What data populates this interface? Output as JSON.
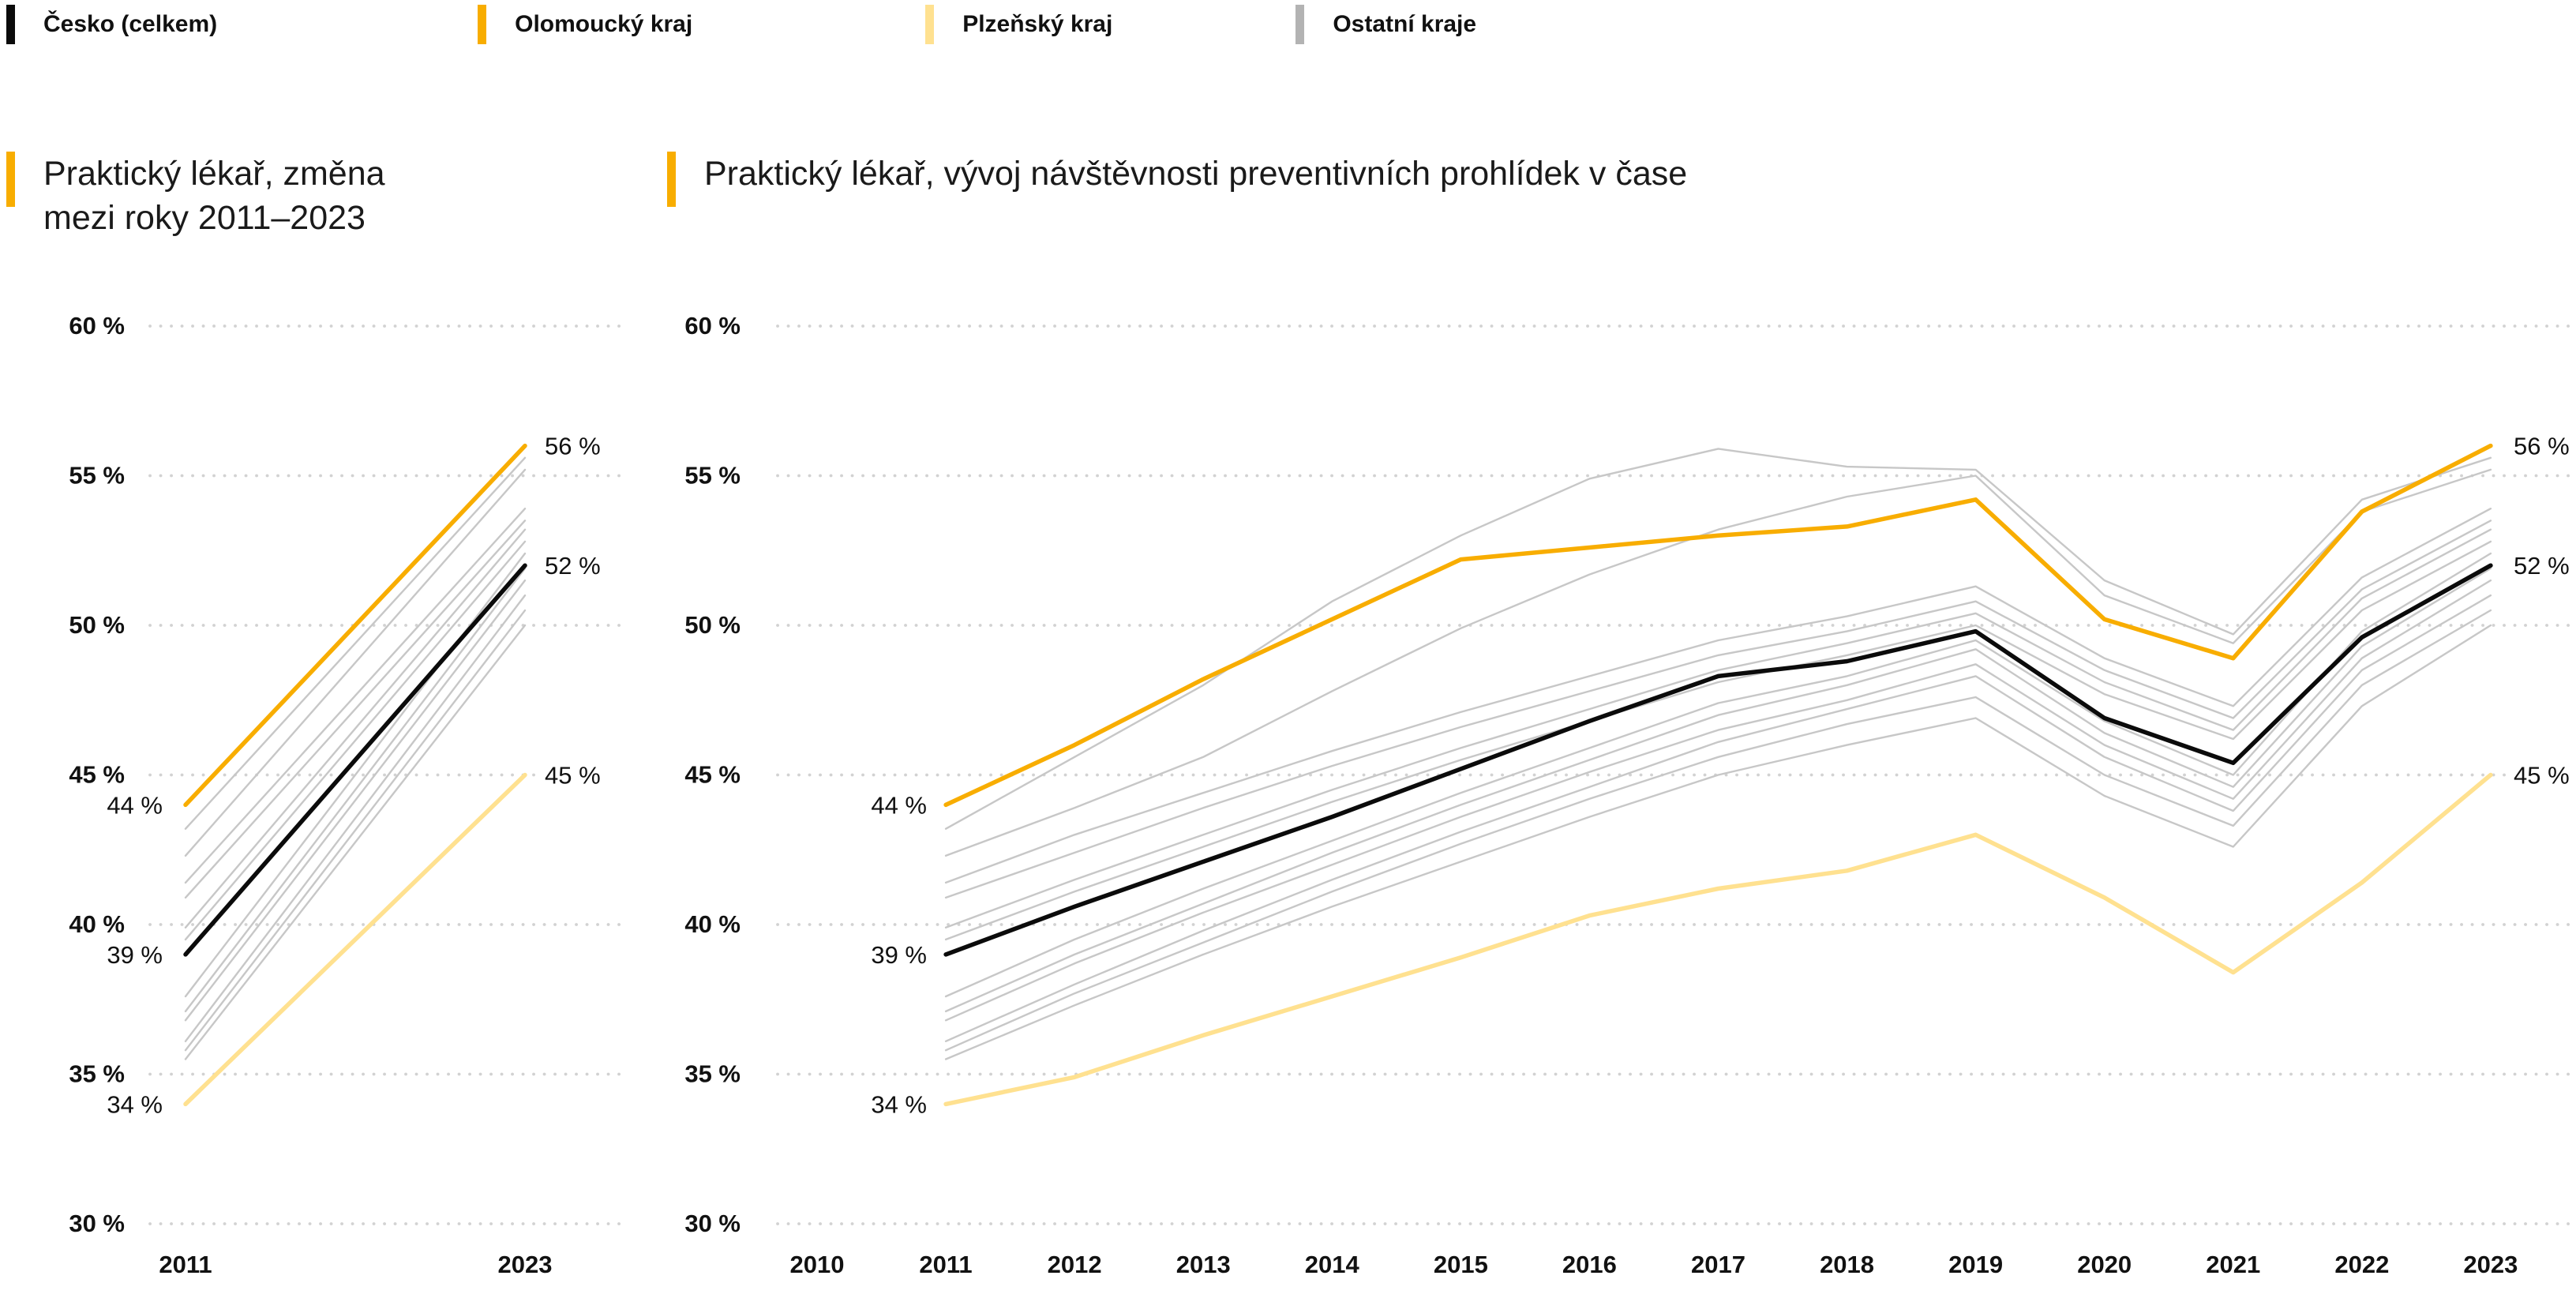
{
  "colors": {
    "black": "#0b0b0b",
    "orange": "#F8AD00",
    "yellow": "#FFE190",
    "gray_line": "#c7c7c7",
    "gray_swatch": "#b3b3b3",
    "grid_dot": "#d2d2d2",
    "text": "#111111"
  },
  "legend": {
    "items": [
      {
        "label": "Česko (celkem)",
        "color": "black"
      },
      {
        "label": "Olomoucký kraj",
        "color": "orange"
      },
      {
        "label": "Plzeňský kraj",
        "color": "yellow"
      },
      {
        "label": "Ostatní kraje",
        "color": "gray_swatch"
      }
    ]
  },
  "charts": {
    "left": {
      "title_line1": "Praktický lékař, změna",
      "title_line2": "mezi roky 2011–2023"
    },
    "right": {
      "title": "Praktický lékař, vývoj návštěvnosti preventivních prohlídek v čase"
    }
  },
  "axis": {
    "y_ticks": [
      {
        "label": "60 %",
        "value": 60
      },
      {
        "label": "55 %",
        "value": 55
      },
      {
        "label": "50 %",
        "value": 50
      },
      {
        "label": "45 %",
        "value": 45
      },
      {
        "label": "40 %",
        "value": 40
      },
      {
        "label": "35 %",
        "value": 35
      },
      {
        "label": "30 %",
        "value": 30
      }
    ]
  },
  "chart_data": [
    {
      "type": "line",
      "subtype": "slope",
      "title": "Praktický lékař, změna mezi roky 2011–2023",
      "x": [
        2011,
        2023
      ],
      "x_tick_labels": [
        "2011",
        "2023"
      ],
      "ylim": [
        30,
        60
      ],
      "grid": "dotted-horizontal",
      "series": [
        {
          "name": "Olomoucký kraj",
          "color": "orange",
          "main": true,
          "values": [
            44,
            56
          ]
        },
        {
          "name": "Česko (celkem)",
          "color": "black",
          "main": true,
          "values": [
            39,
            52
          ]
        },
        {
          "name": "Plzeňský kraj",
          "color": "yellow",
          "main": true,
          "values": [
            34,
            45
          ]
        },
        {
          "name": "Ostatní kraje 1",
          "color": "gray_line",
          "main": false,
          "values": [
            43.2,
            55.6
          ]
        },
        {
          "name": "Ostatní kraje 2",
          "color": "gray_line",
          "main": false,
          "values": [
            42.3,
            55.2
          ]
        },
        {
          "name": "Ostatní kraje 3",
          "color": "gray_line",
          "main": false,
          "values": [
            41.4,
            53.9
          ]
        },
        {
          "name": "Ostatní kraje 4",
          "color": "gray_line",
          "main": false,
          "values": [
            40.9,
            53.5
          ]
        },
        {
          "name": "Ostatní kraje 5",
          "color": "gray_line",
          "main": false,
          "values": [
            39.9,
            53.2
          ]
        },
        {
          "name": "Ostatní kraje 6",
          "color": "gray_line",
          "main": false,
          "values": [
            39.5,
            52.8
          ]
        },
        {
          "name": "Ostatní kraje 7",
          "color": "gray_line",
          "main": false,
          "values": [
            37.6,
            52.4
          ]
        },
        {
          "name": "Ostatní kraje 8",
          "color": "gray_line",
          "main": false,
          "values": [
            37.1,
            51.9
          ]
        },
        {
          "name": "Ostatní kraje 9",
          "color": "gray_line",
          "main": false,
          "values": [
            36.8,
            51.5
          ]
        },
        {
          "name": "Ostatní kraje 10",
          "color": "gray_line",
          "main": false,
          "values": [
            36.1,
            51.0
          ]
        },
        {
          "name": "Ostatní kraje 11",
          "color": "gray_line",
          "main": false,
          "values": [
            35.8,
            50.5
          ]
        },
        {
          "name": "Ostatní kraje 12",
          "color": "gray_line",
          "main": false,
          "values": [
            35.5,
            50.0
          ]
        }
      ],
      "value_labels": {
        "start": [
          {
            "text": "44 %",
            "value": 44
          },
          {
            "text": "39 %",
            "value": 39
          },
          {
            "text": "34 %",
            "value": 34
          }
        ],
        "end": [
          {
            "text": "56 %",
            "value": 56
          },
          {
            "text": "52 %",
            "value": 52
          },
          {
            "text": "45 %",
            "value": 45
          }
        ]
      }
    },
    {
      "type": "line",
      "title": "Praktický lékař, vývoj návštěvnosti preventivních prohlídek v čase",
      "x": [
        2011,
        2012,
        2013,
        2014,
        2015,
        2016,
        2017,
        2018,
        2019,
        2020,
        2021,
        2022,
        2023
      ],
      "x_tick_labels": [
        "2010",
        "2011",
        "2012",
        "2013",
        "2014",
        "2015",
        "2016",
        "2017",
        "2018",
        "2019",
        "2020",
        "2021",
        "2022",
        "2023"
      ],
      "x_axis_range": [
        2010,
        2023
      ],
      "ylim": [
        30,
        60
      ],
      "grid": "dotted-horizontal",
      "series": [
        {
          "name": "Olomoucký kraj",
          "color": "orange",
          "main": true,
          "values": [
            44,
            46,
            48.2,
            50.2,
            52.2,
            52.6,
            53,
            53.3,
            54.2,
            50.2,
            48.9,
            53.8,
            56
          ]
        },
        {
          "name": "Česko (celkem)",
          "color": "black",
          "main": true,
          "values": [
            39,
            40.6,
            42.1,
            43.6,
            45.2,
            46.8,
            48.3,
            48.8,
            49.8,
            46.9,
            45.4,
            49.6,
            52
          ]
        },
        {
          "name": "Plzeňský kraj",
          "color": "yellow",
          "main": true,
          "values": [
            34,
            34.9,
            36.3,
            37.6,
            38.9,
            40.3,
            41.2,
            41.8,
            43,
            40.9,
            38.4,
            41.4,
            45
          ]
        },
        {
          "name": "Ostatní kraje 1",
          "color": "gray_line",
          "main": false,
          "values": [
            43.2,
            45.6,
            48,
            50.8,
            53,
            54.9,
            55.9,
            55.3,
            55.2,
            51.5,
            49.7,
            54.2,
            55.6
          ]
        },
        {
          "name": "Ostatní kraje 2",
          "color": "gray_line",
          "main": false,
          "values": [
            42.3,
            43.9,
            45.6,
            47.8,
            49.9,
            51.7,
            53.2,
            54.3,
            55,
            51,
            49.4,
            53.8,
            55.2
          ]
        },
        {
          "name": "Ostatní kraje 3",
          "color": "gray_line",
          "main": false,
          "values": [
            41.4,
            43,
            44.4,
            45.8,
            47.1,
            48.3,
            49.5,
            50.3,
            51.3,
            48.9,
            47.3,
            51.6,
            53.9
          ]
        },
        {
          "name": "Ostatní kraje 4",
          "color": "gray_line",
          "main": false,
          "values": [
            40.9,
            42.4,
            43.9,
            45.3,
            46.6,
            47.8,
            49,
            49.8,
            50.8,
            48.5,
            46.9,
            51.2,
            53.5
          ]
        },
        {
          "name": "Ostatní kraje 5",
          "color": "gray_line",
          "main": false,
          "values": [
            39.9,
            41.5,
            43,
            44.5,
            45.9,
            47.2,
            48.5,
            49.4,
            50.4,
            48.1,
            46.5,
            50.9,
            53.2
          ]
        },
        {
          "name": "Ostatní kraje 6",
          "color": "gray_line",
          "main": false,
          "values": [
            39.5,
            41.1,
            42.6,
            44.1,
            45.5,
            46.8,
            48.1,
            49,
            50,
            47.7,
            46.2,
            50.5,
            52.8
          ]
        },
        {
          "name": "Ostatní kraje 7",
          "color": "gray_line",
          "main": false,
          "values": [
            37.6,
            39.5,
            41.2,
            42.8,
            44.4,
            45.9,
            47.4,
            48.3,
            49.5,
            46.8,
            45,
            49.8,
            52.4
          ]
        },
        {
          "name": "Ostatní kraje 8",
          "color": "gray_line",
          "main": false,
          "values": [
            37.1,
            39,
            40.7,
            42.4,
            44,
            45.5,
            47,
            48,
            49.2,
            46.4,
            44.6,
            49.3,
            51.9
          ]
        },
        {
          "name": "Ostatní kraje 9",
          "color": "gray_line",
          "main": false,
          "values": [
            36.8,
            38.7,
            40.4,
            42,
            43.6,
            45.1,
            46.5,
            47.5,
            48.7,
            46,
            44.2,
            48.9,
            51.5
          ]
        },
        {
          "name": "Ostatní kraje 10",
          "color": "gray_line",
          "main": false,
          "values": [
            36.1,
            38,
            39.8,
            41.5,
            43.1,
            44.6,
            46.1,
            47.2,
            48.3,
            45.6,
            43.8,
            48.5,
            51
          ]
        },
        {
          "name": "Ostatní kraje 11",
          "color": "gray_line",
          "main": false,
          "values": [
            35.8,
            37.7,
            39.4,
            41.1,
            42.7,
            44.2,
            45.6,
            46.7,
            47.6,
            45,
            43.3,
            48,
            50.5
          ]
        },
        {
          "name": "Ostatní kraje 12",
          "color": "gray_line",
          "main": false,
          "values": [
            35.5,
            37.3,
            39,
            40.6,
            42.1,
            43.6,
            45,
            46,
            46.9,
            44.3,
            42.6,
            47.3,
            50
          ]
        }
      ],
      "value_labels": {
        "start": [
          {
            "text": "44 %",
            "value": 44
          },
          {
            "text": "39 %",
            "value": 39
          },
          {
            "text": "34 %",
            "value": 34
          }
        ],
        "end": [
          {
            "text": "56 %",
            "value": 56
          },
          {
            "text": "52 %",
            "value": 52
          },
          {
            "text": "45 %",
            "value": 45
          }
        ]
      }
    }
  ]
}
